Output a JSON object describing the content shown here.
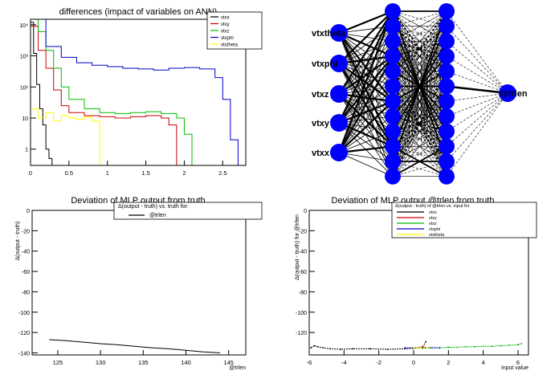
{
  "chart_data": [
    {
      "type": "line",
      "title": "differences (impact of variables on ANN)",
      "xlabel": "",
      "ylabel": "",
      "xlim": [
        0,
        2.8
      ],
      "yscale": "log",
      "ylim": [
        0.3,
        15000
      ],
      "x_ticks": [
        {
          "v": 0,
          "t": "0"
        },
        {
          "v": 0.5,
          "t": "0.5"
        },
        {
          "v": 1,
          "t": "1"
        },
        {
          "v": 1.5,
          "t": "1.5"
        },
        {
          "v": 2,
          "t": "2"
        },
        {
          "v": 2.5,
          "t": "2.5"
        }
      ],
      "y_ticks": [
        {
          "v": 1,
          "t": "1"
        },
        {
          "v": 10,
          "t": "10"
        },
        {
          "v": 100,
          "t": "10²"
        },
        {
          "v": 1000,
          "t": "10³"
        },
        {
          "v": 10000,
          "t": "10⁴"
        }
      ],
      "legend": "top-right",
      "series": [
        {
          "name": "vtxx",
          "color": "#000000",
          "x": [
            0.0,
            0.04,
            0.08,
            0.12,
            0.16,
            0.2,
            0.24,
            0.28
          ],
          "y": [
            12000,
            1200,
            120,
            20,
            6,
            1,
            0.5,
            0.3
          ]
        },
        {
          "name": "vtxy",
          "color": "#cc0000",
          "x": [
            0.0,
            0.1,
            0.2,
            0.3,
            0.4,
            0.5,
            0.7,
            0.9,
            1.1,
            1.3,
            1.5,
            1.7,
            1.8,
            1.9
          ],
          "y": [
            9000,
            1500,
            400,
            80,
            25,
            15,
            12,
            11,
            10,
            11,
            12,
            10,
            6,
            0.3
          ]
        },
        {
          "name": "vtxz",
          "color": "#00bb00",
          "x": [
            0.0,
            0.1,
            0.2,
            0.3,
            0.4,
            0.5,
            0.7,
            0.9,
            1.1,
            1.3,
            1.5,
            1.7,
            1.9,
            2.0,
            2.1
          ],
          "y": [
            15000,
            6000,
            1500,
            400,
            100,
            40,
            20,
            15,
            14,
            15,
            16,
            14,
            10,
            3,
            0.3
          ]
        },
        {
          "name": "vtxphi",
          "color": "#0000cc",
          "x": [
            0.0,
            0.2,
            0.4,
            0.6,
            0.8,
            1.0,
            1.2,
            1.4,
            1.6,
            1.8,
            2.0,
            2.2,
            2.4,
            2.5,
            2.6,
            2.7
          ],
          "y": [
            15000,
            2000,
            900,
            600,
            500,
            450,
            400,
            380,
            350,
            400,
            420,
            380,
            200,
            40,
            2,
            0.3
          ]
        },
        {
          "name": "vtxtheta",
          "color": "#ffff00",
          "x": [
            0.0,
            0.1,
            0.2,
            0.3,
            0.4,
            0.5,
            0.6,
            0.7,
            0.8,
            0.9
          ],
          "y": [
            20,
            10,
            15,
            8,
            12,
            10,
            9,
            11,
            8,
            0.3
          ]
        }
      ]
    },
    {
      "type": "diagram",
      "inputs": [
        "vtxx",
        "vtxy",
        "vtxz",
        "vtxphi",
        "vtxtheta"
      ],
      "input_labels_shown": [
        "vtxx",
        "vtxy",
        "vtxz",
        "vtxphi",
        "vtxtheta"
      ],
      "hidden_layers": [
        12,
        12
      ],
      "output": "@trlen"
    },
    {
      "type": "line",
      "title": "Deviation of MLP output from truth",
      "xlabel": "@trlen",
      "ylabel": "Δ(output - truth)",
      "xlim": [
        122,
        147
      ],
      "ylim": [
        -142,
        0
      ],
      "x_ticks": [
        {
          "v": 125,
          "t": "125"
        },
        {
          "v": 130,
          "t": "130"
        },
        {
          "v": 135,
          "t": "135"
        },
        {
          "v": 140,
          "t": "140"
        },
        {
          "v": 145,
          "t": "145"
        }
      ],
      "y_ticks": [
        {
          "v": 0,
          "t": "0"
        },
        {
          "v": -20,
          "t": "-20"
        },
        {
          "v": -40,
          "t": "-40"
        },
        {
          "v": -60,
          "t": "-60"
        },
        {
          "v": -80,
          "t": "-80"
        },
        {
          "v": -100,
          "t": "-100"
        },
        {
          "v": -120,
          "t": "-120"
        },
        {
          "v": -140,
          "t": "-140"
        }
      ],
      "legend_title": "Δ(output - truth) vs. truth for:",
      "series": [
        {
          "name": "@trlen",
          "color": "#000000",
          "x": [
            124,
            126,
            128,
            130,
            132,
            134,
            136,
            138,
            140,
            142,
            144
          ],
          "y": [
            -127,
            -128,
            -129.5,
            -131,
            -132,
            -133.5,
            -135,
            -136,
            -137.5,
            -139,
            -140
          ]
        }
      ]
    },
    {
      "type": "scatter",
      "title": "Deviation of MLP output @trlen from truth",
      "xlabel": "input value",
      "ylabel": "Δ(output - truth) for @trlen",
      "xlim": [
        -6,
        6.6
      ],
      "ylim": [
        -142,
        0
      ],
      "x_ticks": [
        {
          "v": -6,
          "t": "-6"
        },
        {
          "v": -4,
          "t": "-4"
        },
        {
          "v": -2,
          "t": "-2"
        },
        {
          "v": 0,
          "t": "0"
        },
        {
          "v": 2,
          "t": "2"
        },
        {
          "v": 4,
          "t": "4"
        },
        {
          "v": 6,
          "t": "6"
        }
      ],
      "y_ticks": [
        {
          "v": 0,
          "t": "0"
        },
        {
          "v": -20,
          "t": "-20"
        },
        {
          "v": -40,
          "t": "-40"
        },
        {
          "v": -60,
          "t": "-60"
        },
        {
          "v": -80,
          "t": "-80"
        },
        {
          "v": -100,
          "t": "-100"
        },
        {
          "v": -120,
          "t": "-120"
        }
      ],
      "legend_title": "Δ(output - truth) of @trlen vs. input for",
      "series": [
        {
          "name": "vtxx",
          "color": "#000000",
          "x": [
            -5.9,
            -5.7,
            -5.5,
            -5.2,
            -4.8,
            -4.2,
            -3.5,
            -2.5,
            -1.5,
            -0.5,
            0.0,
            0.5,
            0.7
          ],
          "y": [
            -135,
            -133,
            -134,
            -135,
            -136,
            -136.5,
            -136,
            -136,
            -136.5,
            -136,
            -135.5,
            -135,
            -129
          ]
        },
        {
          "name": "vtxy",
          "color": "#cc0000",
          "x": [
            0.2,
            0.5,
            0.8
          ],
          "y": [
            -135,
            -134,
            -135
          ]
        },
        {
          "name": "vtxz",
          "color": "#00bb00",
          "x": [
            0.5,
            1.0,
            1.5,
            2.0,
            2.5,
            3.0,
            3.5,
            4.0,
            4.5,
            5.0,
            5.5,
            6.0,
            6.2
          ],
          "y": [
            -135.5,
            -135,
            -135,
            -134.5,
            -134.5,
            -134,
            -134,
            -133.5,
            -133.5,
            -133,
            -132.5,
            -132,
            -131
          ]
        },
        {
          "name": "vtxphi",
          "color": "#0000cc",
          "x": [
            -0.5,
            0.5,
            1.5
          ],
          "y": [
            -135,
            -135,
            -135
          ]
        },
        {
          "name": "vtxtheta",
          "color": "#ffff00",
          "x": [
            0.0,
            0.2,
            0.4,
            0.6,
            0.8
          ],
          "y": [
            -135,
            -135,
            -135,
            -135,
            -135
          ]
        }
      ]
    }
  ]
}
